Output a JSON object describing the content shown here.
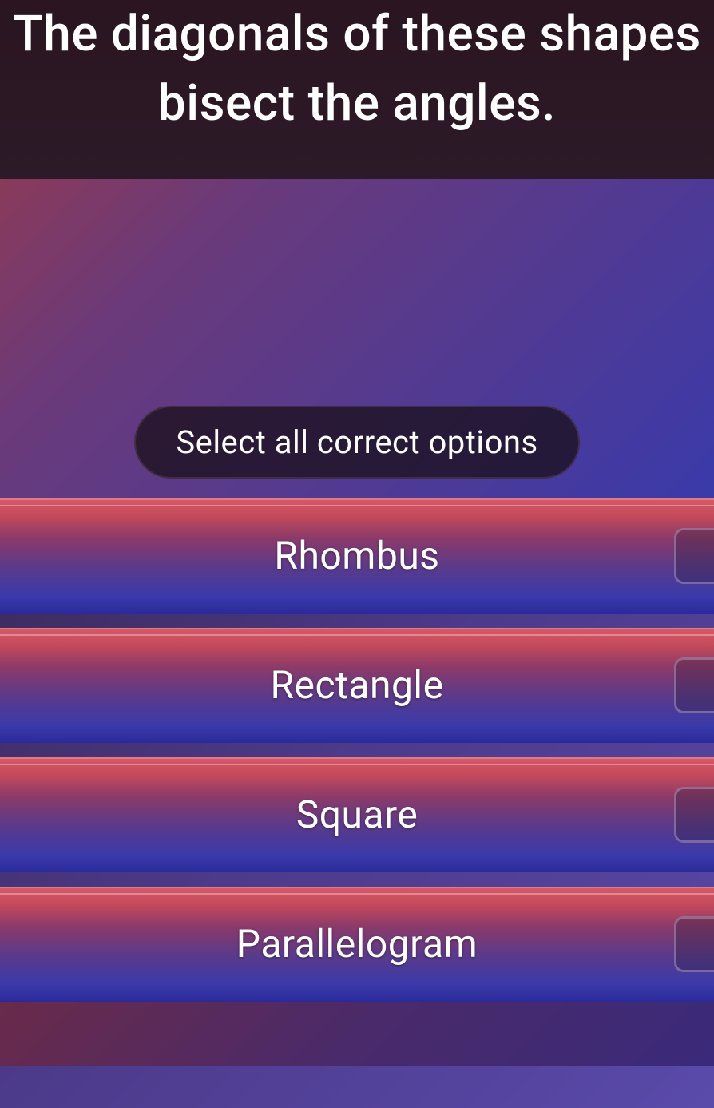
{
  "question": "The diagonals of these shapes bisect the angles.",
  "instruction": "Select all correct options",
  "options": [
    {
      "label": "Rhombus"
    },
    {
      "label": "Rectangle"
    },
    {
      "label": "Square"
    },
    {
      "label": "Parallelogram"
    }
  ],
  "colors": {
    "header_bg": "#2a1520",
    "option_top": "#d65a6a",
    "option_bottom": "#2a2a9a",
    "text": "#ffffff",
    "pill_bg": "rgba(25, 15, 25, 0.75)"
  }
}
